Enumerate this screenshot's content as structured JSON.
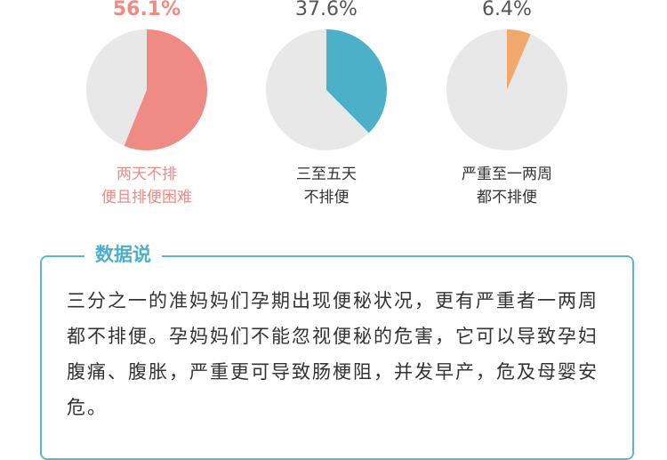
{
  "chart_data": [
    {
      "type": "pie",
      "categories": [
        "两天不排\n便且排便困难"
      ],
      "values": [
        56.1
      ],
      "value_labels": [
        "56.1%"
      ],
      "color": "#f08a84",
      "text_color": "#f08a84"
    },
    {
      "type": "pie",
      "categories": [
        "三至五天\n不排便"
      ],
      "values": [
        37.6
      ],
      "value_labels": [
        "37.6%"
      ],
      "color": "#4bb0c8",
      "text_color": "#333333"
    },
    {
      "type": "pie",
      "categories": [
        "严重至一两周\n都不排便"
      ],
      "values": [
        6.4
      ],
      "value_labels": [
        "6.4%"
      ],
      "color": "#f2a86b",
      "text_color": "#333333"
    }
  ],
  "note": {
    "title": "数据说",
    "text": "三分之一的准妈妈们孕期出现便秘状况，更有严重者一两周都不排便。孕妈妈们不能忽视便秘的危害，它可以导致孕妇腹痛、腹胀，严重更可导致肠梗阻，并发早产，危及母婴安危。"
  }
}
